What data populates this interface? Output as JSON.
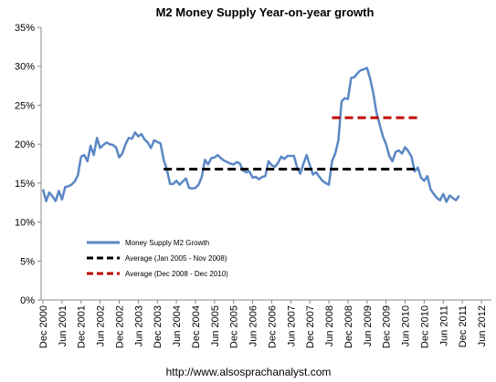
{
  "chart_data": {
    "type": "line",
    "title": "M2 Money Supply Year-on-year growth",
    "footer": "http://www.alsosprachanalyst.com",
    "categories": [
      "Dec 2000",
      null,
      null,
      null,
      null,
      null,
      "Jun 2001",
      null,
      null,
      null,
      null,
      null,
      "Dec 2001",
      null,
      null,
      null,
      null,
      null,
      "Jun 2002",
      null,
      null,
      null,
      null,
      null,
      "Dec 2002",
      null,
      null,
      null,
      null,
      null,
      "Jun 2003",
      null,
      null,
      null,
      null,
      null,
      "Dec 2003",
      null,
      null,
      null,
      null,
      null,
      "Jun 2004",
      null,
      null,
      null,
      null,
      null,
      "Dec 2004",
      null,
      null,
      null,
      null,
      null,
      "Jun 2005",
      null,
      null,
      null,
      null,
      null,
      "Dec 2005",
      null,
      null,
      null,
      null,
      null,
      "Jun 2006",
      null,
      null,
      null,
      null,
      null,
      "Dec 2006",
      null,
      null,
      null,
      null,
      null,
      "Jun 2007",
      null,
      null,
      null,
      null,
      null,
      "Dec 2007",
      null,
      null,
      null,
      null,
      null,
      "Jun 2008",
      null,
      null,
      null,
      null,
      null,
      "Dec 2008",
      null,
      null,
      null,
      null,
      null,
      "Jun 2009",
      null,
      null,
      null,
      null,
      null,
      "Dec 2009",
      null,
      null,
      null,
      null,
      null,
      "Jun 2010",
      null,
      null,
      null,
      null,
      null,
      "Dec 2010",
      null,
      null,
      null,
      null,
      null,
      "Jun 2011",
      null,
      null,
      null,
      null,
      null,
      "Dec 2011",
      null,
      null,
      null,
      null,
      null,
      "Jun 2012"
    ],
    "series": [
      {
        "name": "Money Supply M2 Growth",
        "color": "#5a87c5",
        "dashed": false,
        "values": [
          14.2,
          12.7,
          13.8,
          13.3,
          12.7,
          14.0,
          12.9,
          14.5,
          14.6,
          14.8,
          15.2,
          16.0,
          18.4,
          18.6,
          17.8,
          19.8,
          18.6,
          20.8,
          19.5,
          19.9,
          20.2,
          20.0,
          19.9,
          19.6,
          18.3,
          18.8,
          20.0,
          20.8,
          20.7,
          21.5,
          21.0,
          21.3,
          20.6,
          20.2,
          19.5,
          20.5,
          20.3,
          20.1,
          18.0,
          16.8,
          14.9,
          14.9,
          15.3,
          14.8,
          15.2,
          15.6,
          14.4,
          14.3,
          14.4,
          14.8,
          15.8,
          18.0,
          17.4,
          18.2,
          18.3,
          18.6,
          18.2,
          17.9,
          17.7,
          17.5,
          17.4,
          17.7,
          17.5,
          16.6,
          16.4,
          16.5,
          15.7,
          15.8,
          15.5,
          15.8,
          15.9,
          17.8,
          17.3,
          17.1,
          17.6,
          18.4,
          18.1,
          18.5,
          18.5,
          18.5,
          17.0,
          16.2,
          17.5,
          18.6,
          17.3,
          16.1,
          16.4,
          15.8,
          15.3,
          15.0,
          14.8,
          17.8,
          18.8,
          20.5,
          25.5,
          25.9,
          25.8,
          28.5,
          28.6,
          29.1,
          29.5,
          29.6,
          29.8,
          28.4,
          26.5,
          24.0,
          22.5,
          21.0,
          20.0,
          18.5,
          17.8,
          19.0,
          19.2,
          18.8,
          19.6,
          19.1,
          18.4,
          16.5,
          17.0,
          15.7,
          15.3,
          15.9,
          14.2,
          13.6,
          13.1,
          12.8,
          13.6,
          12.6,
          13.4,
          13.1,
          12.8,
          13.4,
          null,
          null,
          null,
          null,
          null,
          null,
          null
        ]
      },
      {
        "name": "Average (Jan 2005 - Nov 2008)",
        "color": "#000000",
        "dashed": true,
        "values": [
          null,
          null,
          null,
          null,
          null,
          null,
          null,
          null,
          null,
          null,
          null,
          null,
          null,
          null,
          null,
          null,
          null,
          null,
          null,
          null,
          null,
          null,
          null,
          null,
          null,
          null,
          null,
          null,
          null,
          null,
          null,
          null,
          null,
          null,
          null,
          null,
          null,
          null,
          16.8,
          16.8,
          16.8,
          16.8,
          16.8,
          16.8,
          16.8,
          16.8,
          16.8,
          16.8,
          16.8,
          16.8,
          16.8,
          16.8,
          16.8,
          16.8,
          16.8,
          16.8,
          16.8,
          16.8,
          16.8,
          16.8,
          16.8,
          16.8,
          16.8,
          16.8,
          16.8,
          16.8,
          16.8,
          16.8,
          16.8,
          16.8,
          16.8,
          16.8,
          16.8,
          16.8,
          16.8,
          16.8,
          16.8,
          16.8,
          16.8,
          16.8,
          16.8,
          16.8,
          16.8,
          16.8,
          16.8,
          16.8,
          16.8,
          16.8,
          16.8,
          16.8,
          16.8,
          16.8,
          16.8,
          16.8,
          16.8,
          16.8,
          16.8,
          16.8,
          16.8,
          16.8,
          16.8,
          16.8,
          16.8,
          16.8,
          16.8,
          16.8,
          16.8,
          16.8,
          16.8,
          16.8,
          16.8,
          16.8,
          16.8,
          16.8,
          16.8,
          16.8,
          16.8,
          16.8,
          null,
          null,
          null,
          null,
          null,
          null,
          null,
          null,
          null,
          null,
          null,
          null,
          null,
          null,
          null,
          null,
          null,
          null,
          null,
          null,
          null
        ]
      },
      {
        "name": "Average (Dec 2008 - Dec 2010)",
        "color": "#c00000",
        "dashed": true,
        "values": [
          null,
          null,
          null,
          null,
          null,
          null,
          null,
          null,
          null,
          null,
          null,
          null,
          null,
          null,
          null,
          null,
          null,
          null,
          null,
          null,
          null,
          null,
          null,
          null,
          null,
          null,
          null,
          null,
          null,
          null,
          null,
          null,
          null,
          null,
          null,
          null,
          null,
          null,
          null,
          null,
          null,
          null,
          null,
          null,
          null,
          null,
          null,
          null,
          null,
          null,
          null,
          null,
          null,
          null,
          null,
          null,
          null,
          null,
          null,
          null,
          null,
          null,
          null,
          null,
          null,
          null,
          null,
          null,
          null,
          null,
          null,
          null,
          null,
          null,
          null,
          null,
          null,
          null,
          null,
          null,
          null,
          null,
          null,
          null,
          null,
          null,
          null,
          null,
          null,
          null,
          null,
          23.4,
          23.4,
          23.4,
          23.4,
          23.4,
          23.4,
          23.4,
          23.4,
          23.4,
          23.4,
          23.4,
          23.4,
          23.4,
          23.4,
          23.4,
          23.4,
          23.4,
          23.4,
          23.4,
          23.4,
          23.4,
          23.4,
          23.4,
          23.4,
          23.4,
          23.4,
          23.4,
          23.4,
          23.4,
          null,
          null,
          null,
          null,
          null,
          null,
          null,
          null,
          null,
          null,
          null,
          null,
          null,
          null,
          null,
          null,
          null,
          null,
          null
        ]
      }
    ],
    "ylim": [
      0,
      35
    ],
    "yticks": [
      {
        "value": 0,
        "label": "0%"
      },
      {
        "value": 5,
        "label": "5%"
      },
      {
        "value": 10,
        "label": "10%"
      },
      {
        "value": 15,
        "label": "15%"
      },
      {
        "value": 20,
        "label": "20%"
      },
      {
        "value": 25,
        "label": "25%"
      },
      {
        "value": 30,
        "label": "30%"
      },
      {
        "value": 35,
        "label": "35%"
      }
    ],
    "grid": false,
    "legend": "lower-left"
  }
}
